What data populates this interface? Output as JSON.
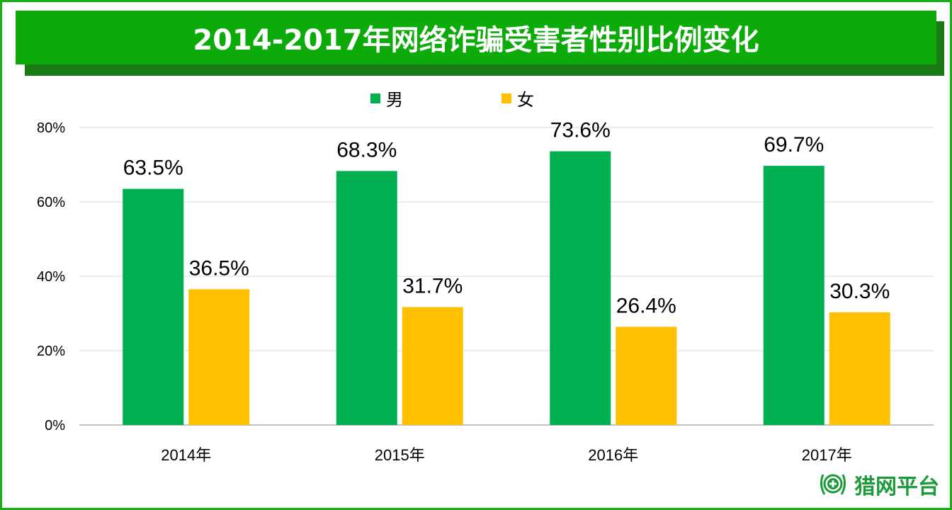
{
  "chart_data": {
    "type": "bar",
    "title": "2014-2017年网络诈骗受害者性别比例变化",
    "categories": [
      "2014年",
      "2015年",
      "2016年",
      "2017年"
    ],
    "series": [
      {
        "name": "男",
        "color": "#00b050",
        "values": [
          63.5,
          68.3,
          73.6,
          69.7
        ],
        "labels": [
          "63.5%",
          "68.3%",
          "73.6%",
          "69.7%"
        ]
      },
      {
        "name": "女",
        "color": "#ffc000",
        "values": [
          36.5,
          31.7,
          26.4,
          30.3
        ],
        "labels": [
          "36.5%",
          "31.7%",
          "26.4%",
          "30.3%"
        ]
      }
    ],
    "yticks": [
      "0%",
      "20%",
      "40%",
      "60%",
      "80%"
    ],
    "ylim": [
      0,
      80
    ],
    "grid": true,
    "legend": "top-center",
    "xlabel": "",
    "ylabel": ""
  },
  "logo": {
    "text": "猎网平台"
  }
}
